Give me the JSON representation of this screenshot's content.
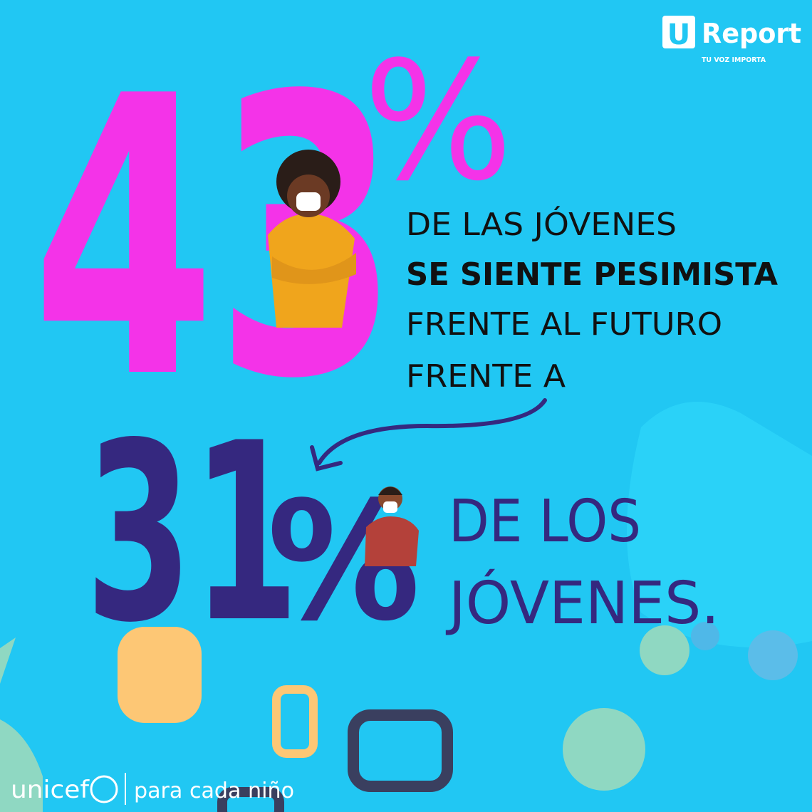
{
  "logo": {
    "mark": "U",
    "name": "Report",
    "tagline": "TU VOZ IMPORTA"
  },
  "first": {
    "number": "43",
    "symbol": "%",
    "lines": [
      "DE LAS JÓVENES",
      "SE SIENTE PESIMISTA",
      "FRENTE AL FUTURO",
      "FRENTE A"
    ]
  },
  "second": {
    "number": "31",
    "symbol": "%",
    "lines": [
      "DE LOS",
      "JÓVENES."
    ]
  },
  "footer": {
    "brand": "unicef",
    "slogan": "para cada niño"
  }
}
